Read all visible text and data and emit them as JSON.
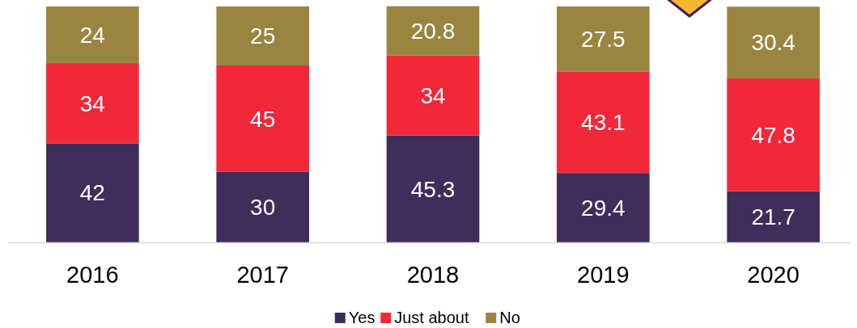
{
  "chart_data": {
    "type": "bar",
    "stacked": true,
    "categories": [
      "2016",
      "2017",
      "2018",
      "2019",
      "2020"
    ],
    "series": [
      {
        "name": "Yes",
        "color": "#3f2d5a",
        "values": [
          42,
          30,
          45.3,
          29.4,
          21.7
        ]
      },
      {
        "name": "Just about",
        "color": "#f0283a",
        "values": [
          34,
          45,
          34,
          43.1,
          47.8
        ]
      },
      {
        "name": "No",
        "color": "#9a8540",
        "values": [
          24,
          25,
          20.8,
          27.5,
          30.4
        ]
      }
    ],
    "ylim": [
      0,
      100
    ],
    "tick_labels": "x",
    "data_labels": true,
    "legend": "bottom"
  }
}
